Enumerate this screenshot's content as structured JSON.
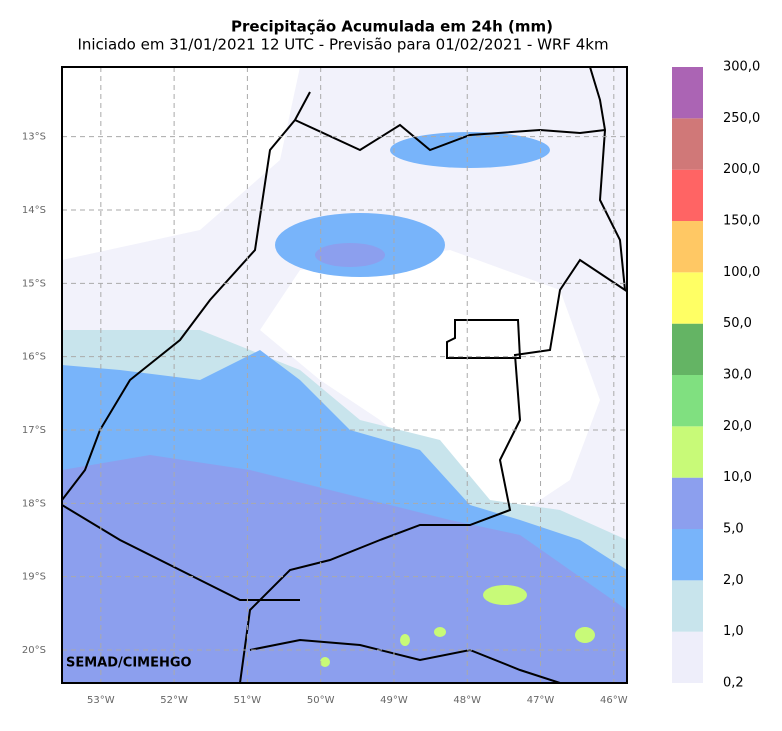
{
  "title": "Precipitação Acumulada em 24h (mm)",
  "subtitle": "Iniciado em 31/01/2021 12 UTC - Previsão para 01/02/2021 - WRF 4km",
  "credit": "SEMAD/CIMEHGO",
  "map": {
    "xlim": [
      -53.53,
      -45.82
    ],
    "ylim": [
      -20.45,
      -12.05
    ],
    "xticks": [
      {
        "value": -53,
        "label": "53°W"
      },
      {
        "value": -52,
        "label": "52°W"
      },
      {
        "value": -51,
        "label": "51°W"
      },
      {
        "value": -50,
        "label": "50°W"
      },
      {
        "value": -49,
        "label": "49°W"
      },
      {
        "value": -48,
        "label": "48°W"
      },
      {
        "value": -47,
        "label": "47°W"
      },
      {
        "value": -46,
        "label": "46°W"
      }
    ],
    "yticks": [
      {
        "value": -13,
        "label": "13°S"
      },
      {
        "value": -14,
        "label": "14°S"
      },
      {
        "value": -15,
        "label": "15°S"
      },
      {
        "value": -16,
        "label": "16°S"
      },
      {
        "value": -17,
        "label": "17°S"
      },
      {
        "value": -18,
        "label": "18°S"
      },
      {
        "value": -19,
        "label": "19°S"
      },
      {
        "value": -20,
        "label": "20°S"
      }
    ],
    "grid": true
  },
  "colorbar": {
    "levels": [
      {
        "value": 0.2,
        "label": "0,2"
      },
      {
        "value": 1,
        "label": "1,0"
      },
      {
        "value": 2,
        "label": "2,0"
      },
      {
        "value": 5,
        "label": "5,0"
      },
      {
        "value": 10,
        "label": "10,0"
      },
      {
        "value": 20,
        "label": "20,0"
      },
      {
        "value": 30,
        "label": "30,0"
      },
      {
        "value": 50,
        "label": "50,0"
      },
      {
        "value": 100,
        "label": "100,0"
      },
      {
        "value": 150,
        "label": "150,0"
      },
      {
        "value": 200,
        "label": "200,0"
      },
      {
        "value": 250,
        "label": "250,0"
      },
      {
        "value": 300,
        "label": "300,0"
      }
    ],
    "colors": [
      "#eeeefa",
      "#c8e4ec",
      "#78b4fa",
      "#8c9fee",
      "#c8fa78",
      "#80e080",
      "#64b464",
      "#ffff64",
      "#ffc864",
      "#ff6464",
      "#d07878",
      "#ab64b4"
    ]
  }
}
